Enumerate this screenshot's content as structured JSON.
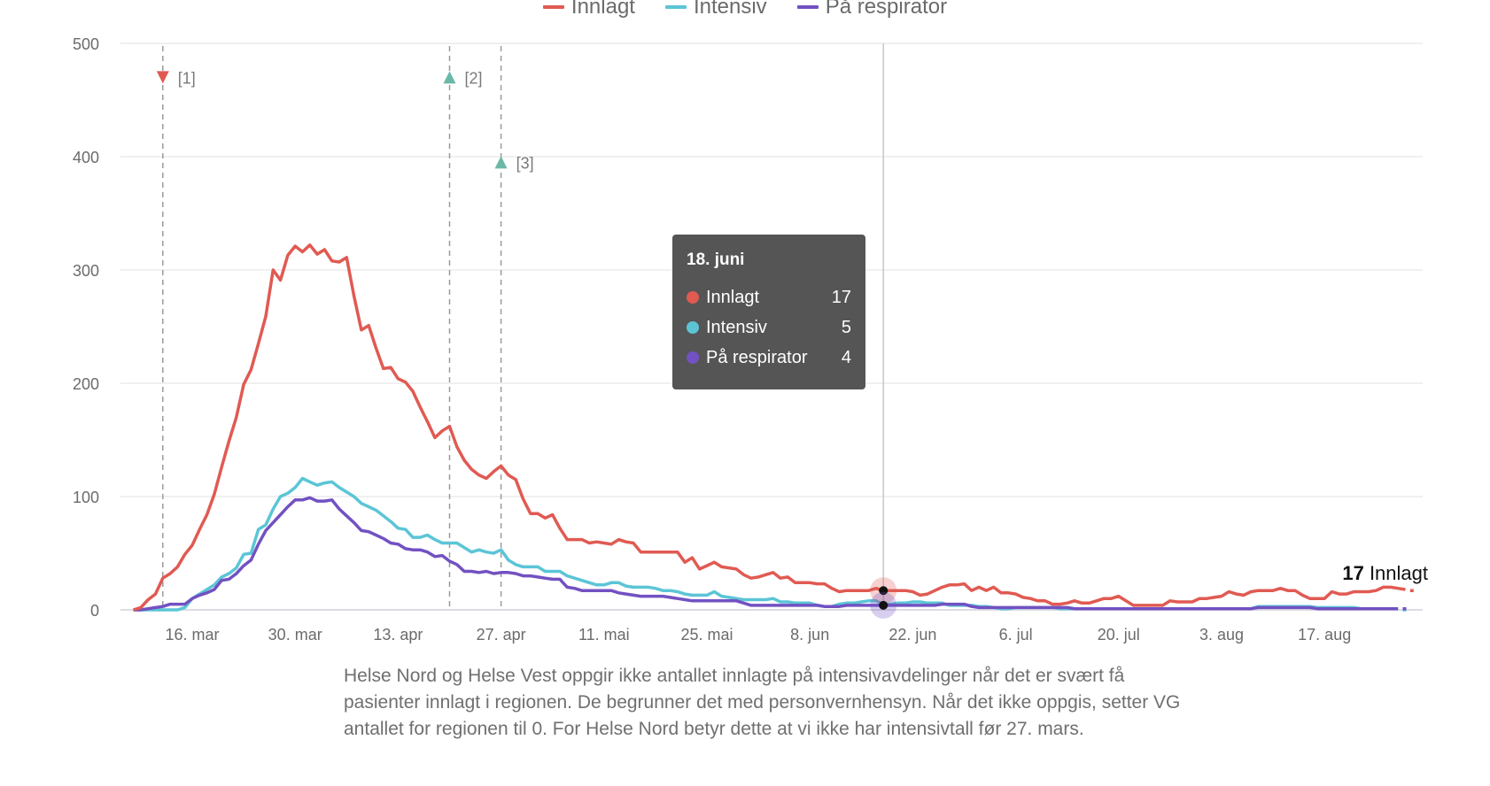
{
  "legend": [
    {
      "label": "Innlagt",
      "color": "#e05a52"
    },
    {
      "label": "Intensiv",
      "color": "#5bc5d6"
    },
    {
      "label": "På respirator",
      "color": "#7251c2"
    }
  ],
  "tooltip": {
    "date": "18. juni",
    "rows": [
      {
        "label": "Innlagt",
        "value": "17",
        "color": "#e05a52"
      },
      {
        "label": "Intensiv",
        "value": "5",
        "color": "#5bc5d6"
      },
      {
        "label": "På respirator",
        "value": "4",
        "color": "#7251c2"
      }
    ]
  },
  "end_label": {
    "value": "17",
    "text": "Innlagt"
  },
  "caption": "Helse Nord og Helse Vest oppgir ikke antallet innlagte på intensivavdelinger når det er svært få pasienter innlagt i regionen. De begrunner det med personvernhensyn. Når det ikke oppgis, setter VG antallet for regionen til 0. For Helse Nord betyr dette at vi ikke har intensivtall før 27. mars.",
  "chart_data": {
    "type": "line",
    "title": "",
    "xlabel": "",
    "ylabel": "",
    "ylim": [
      0,
      500
    ],
    "yticks": [
      0,
      100,
      200,
      300,
      400,
      500
    ],
    "grid": true,
    "legend_position": "top",
    "x_start_date": "8. mar",
    "x_step": "1 day",
    "xtick_labels": [
      {
        "label": "16. mar",
        "day_index": 8
      },
      {
        "label": "30. mar",
        "day_index": 22
      },
      {
        "label": "13. apr",
        "day_index": 36
      },
      {
        "label": "27. apr",
        "day_index": 50
      },
      {
        "label": "11. mai",
        "day_index": 64
      },
      {
        "label": "25. mai",
        "day_index": 78
      },
      {
        "label": "8. jun",
        "day_index": 92
      },
      {
        "label": "22. jun",
        "day_index": 106
      },
      {
        "label": "6. jul",
        "day_index": 120
      },
      {
        "label": "20. jul",
        "day_index": 134
      },
      {
        "label": "3. aug",
        "day_index": 148
      },
      {
        "label": "17. aug",
        "day_index": 162
      }
    ],
    "annotations": [
      {
        "label": "[1]",
        "day_index": 4,
        "marker": "down",
        "color": "#e05a52",
        "level": 470
      },
      {
        "label": "[2]",
        "day_index": 43,
        "marker": "up",
        "color": "#6bb8a8",
        "level": 470
      },
      {
        "label": "[3]",
        "day_index": 50,
        "marker": "up",
        "color": "#6bb8a8",
        "level": 395
      }
    ],
    "highlight_day_index": 102,
    "series": [
      {
        "name": "Innlagt",
        "color": "#e05a52",
        "values": [
          0,
          2,
          9,
          14,
          28,
          32,
          38,
          49,
          57,
          71,
          84,
          102,
          126,
          149,
          170,
          199,
          212,
          235,
          259,
          300,
          291,
          313,
          321,
          316,
          322,
          314,
          318,
          308,
          307,
          311,
          277,
          247,
          251,
          231,
          213,
          214,
          204,
          201,
          193,
          179,
          166,
          152,
          158,
          162,
          144,
          132,
          124,
          119,
          116,
          122,
          127,
          119,
          115,
          98,
          85,
          85,
          81,
          84,
          72,
          62,
          62,
          62,
          59,
          60,
          59,
          58,
          62,
          60,
          59,
          51,
          51,
          51,
          51,
          51,
          51,
          42,
          46,
          36,
          39,
          42,
          38,
          37,
          36,
          31,
          28,
          29,
          31,
          33,
          28,
          29,
          24,
          24,
          24,
          23,
          23,
          19,
          16,
          17,
          17,
          17,
          17,
          19,
          17,
          17,
          17,
          17,
          16,
          13,
          14,
          17,
          20,
          22,
          22,
          23,
          17,
          20,
          17,
          20,
          15,
          15,
          14,
          11,
          10,
          8,
          8,
          5,
          5,
          6,
          8,
          6,
          6,
          8,
          10,
          10,
          12,
          8,
          4,
          4,
          4,
          4,
          4,
          8,
          7,
          7,
          7,
          10,
          10,
          11,
          12,
          16,
          14,
          13,
          16,
          17,
          17,
          17,
          19,
          17,
          17,
          13,
          10,
          10,
          10,
          16,
          14,
          14,
          16,
          16,
          16,
          17,
          20,
          20,
          19,
          18,
          17
        ]
      },
      {
        "name": "Intensiv",
        "color": "#5bc5d6",
        "values": [
          0,
          0,
          0,
          0,
          0,
          0,
          0,
          2,
          10,
          14,
          18,
          22,
          29,
          32,
          37,
          49,
          50,
          71,
          75,
          89,
          100,
          103,
          108,
          116,
          113,
          110,
          112,
          113,
          108,
          104,
          100,
          94,
          91,
          88,
          83,
          78,
          72,
          71,
          64,
          64,
          66,
          62,
          59,
          59,
          59,
          55,
          51,
          53,
          51,
          50,
          53,
          44,
          40,
          38,
          38,
          38,
          34,
          34,
          34,
          30,
          28,
          26,
          24,
          22,
          22,
          24,
          24,
          21,
          20,
          20,
          20,
          19,
          17,
          17,
          16,
          14,
          13,
          13,
          13,
          16,
          12,
          11,
          10,
          9,
          9,
          9,
          9,
          10,
          7,
          7,
          6,
          6,
          6,
          4,
          3,
          3,
          5,
          6,
          6,
          7,
          8,
          8,
          5,
          5,
          6,
          6,
          7,
          7,
          6,
          6,
          6,
          4,
          4,
          4,
          4,
          3,
          3,
          2,
          1,
          1,
          2,
          2,
          2,
          2,
          2,
          2,
          1,
          1,
          1,
          1,
          1,
          1,
          1,
          1,
          1,
          1,
          1,
          1,
          1,
          1,
          1,
          1,
          1,
          1,
          1,
          1,
          1,
          1,
          1,
          1,
          1,
          1,
          1,
          3,
          3,
          3,
          3,
          3,
          3,
          3,
          3,
          2,
          2,
          2,
          2,
          2,
          2,
          1,
          1,
          1,
          1,
          1,
          1,
          0
        ]
      },
      {
        "name": "På respirator",
        "color": "#7251c2",
        "values": [
          0,
          0,
          1,
          2,
          3,
          5,
          5,
          5,
          10,
          13,
          15,
          18,
          26,
          27,
          32,
          39,
          44,
          58,
          70,
          77,
          84,
          91,
          97,
          97,
          99,
          96,
          96,
          97,
          89,
          83,
          77,
          70,
          69,
          66,
          63,
          59,
          58,
          54,
          53,
          53,
          51,
          47,
          48,
          43,
          40,
          34,
          34,
          33,
          34,
          32,
          33,
          33,
          32,
          30,
          30,
          29,
          28,
          27,
          27,
          20,
          19,
          17,
          17,
          17,
          17,
          17,
          15,
          14,
          13,
          12,
          12,
          12,
          12,
          11,
          10,
          9,
          8,
          8,
          8,
          8,
          8,
          8,
          8,
          6,
          4,
          4,
          4,
          4,
          4,
          4,
          4,
          4,
          4,
          4,
          3,
          3,
          3,
          4,
          4,
          4,
          4,
          4,
          4,
          4,
          4,
          4,
          4,
          4,
          4,
          4,
          5,
          5,
          5,
          5,
          3,
          2,
          2,
          2,
          2,
          2,
          2,
          2,
          2,
          2,
          2,
          2,
          2,
          2,
          1,
          1,
          1,
          1,
          1,
          1,
          1,
          1,
          1,
          1,
          1,
          1,
          1,
          1,
          1,
          1,
          1,
          1,
          1,
          1,
          1,
          1,
          1,
          1,
          1,
          2,
          2,
          2,
          2,
          2,
          2,
          2,
          2,
          1,
          1,
          1,
          1,
          1,
          1,
          1,
          1,
          1,
          1,
          1,
          1,
          1
        ]
      }
    ]
  }
}
